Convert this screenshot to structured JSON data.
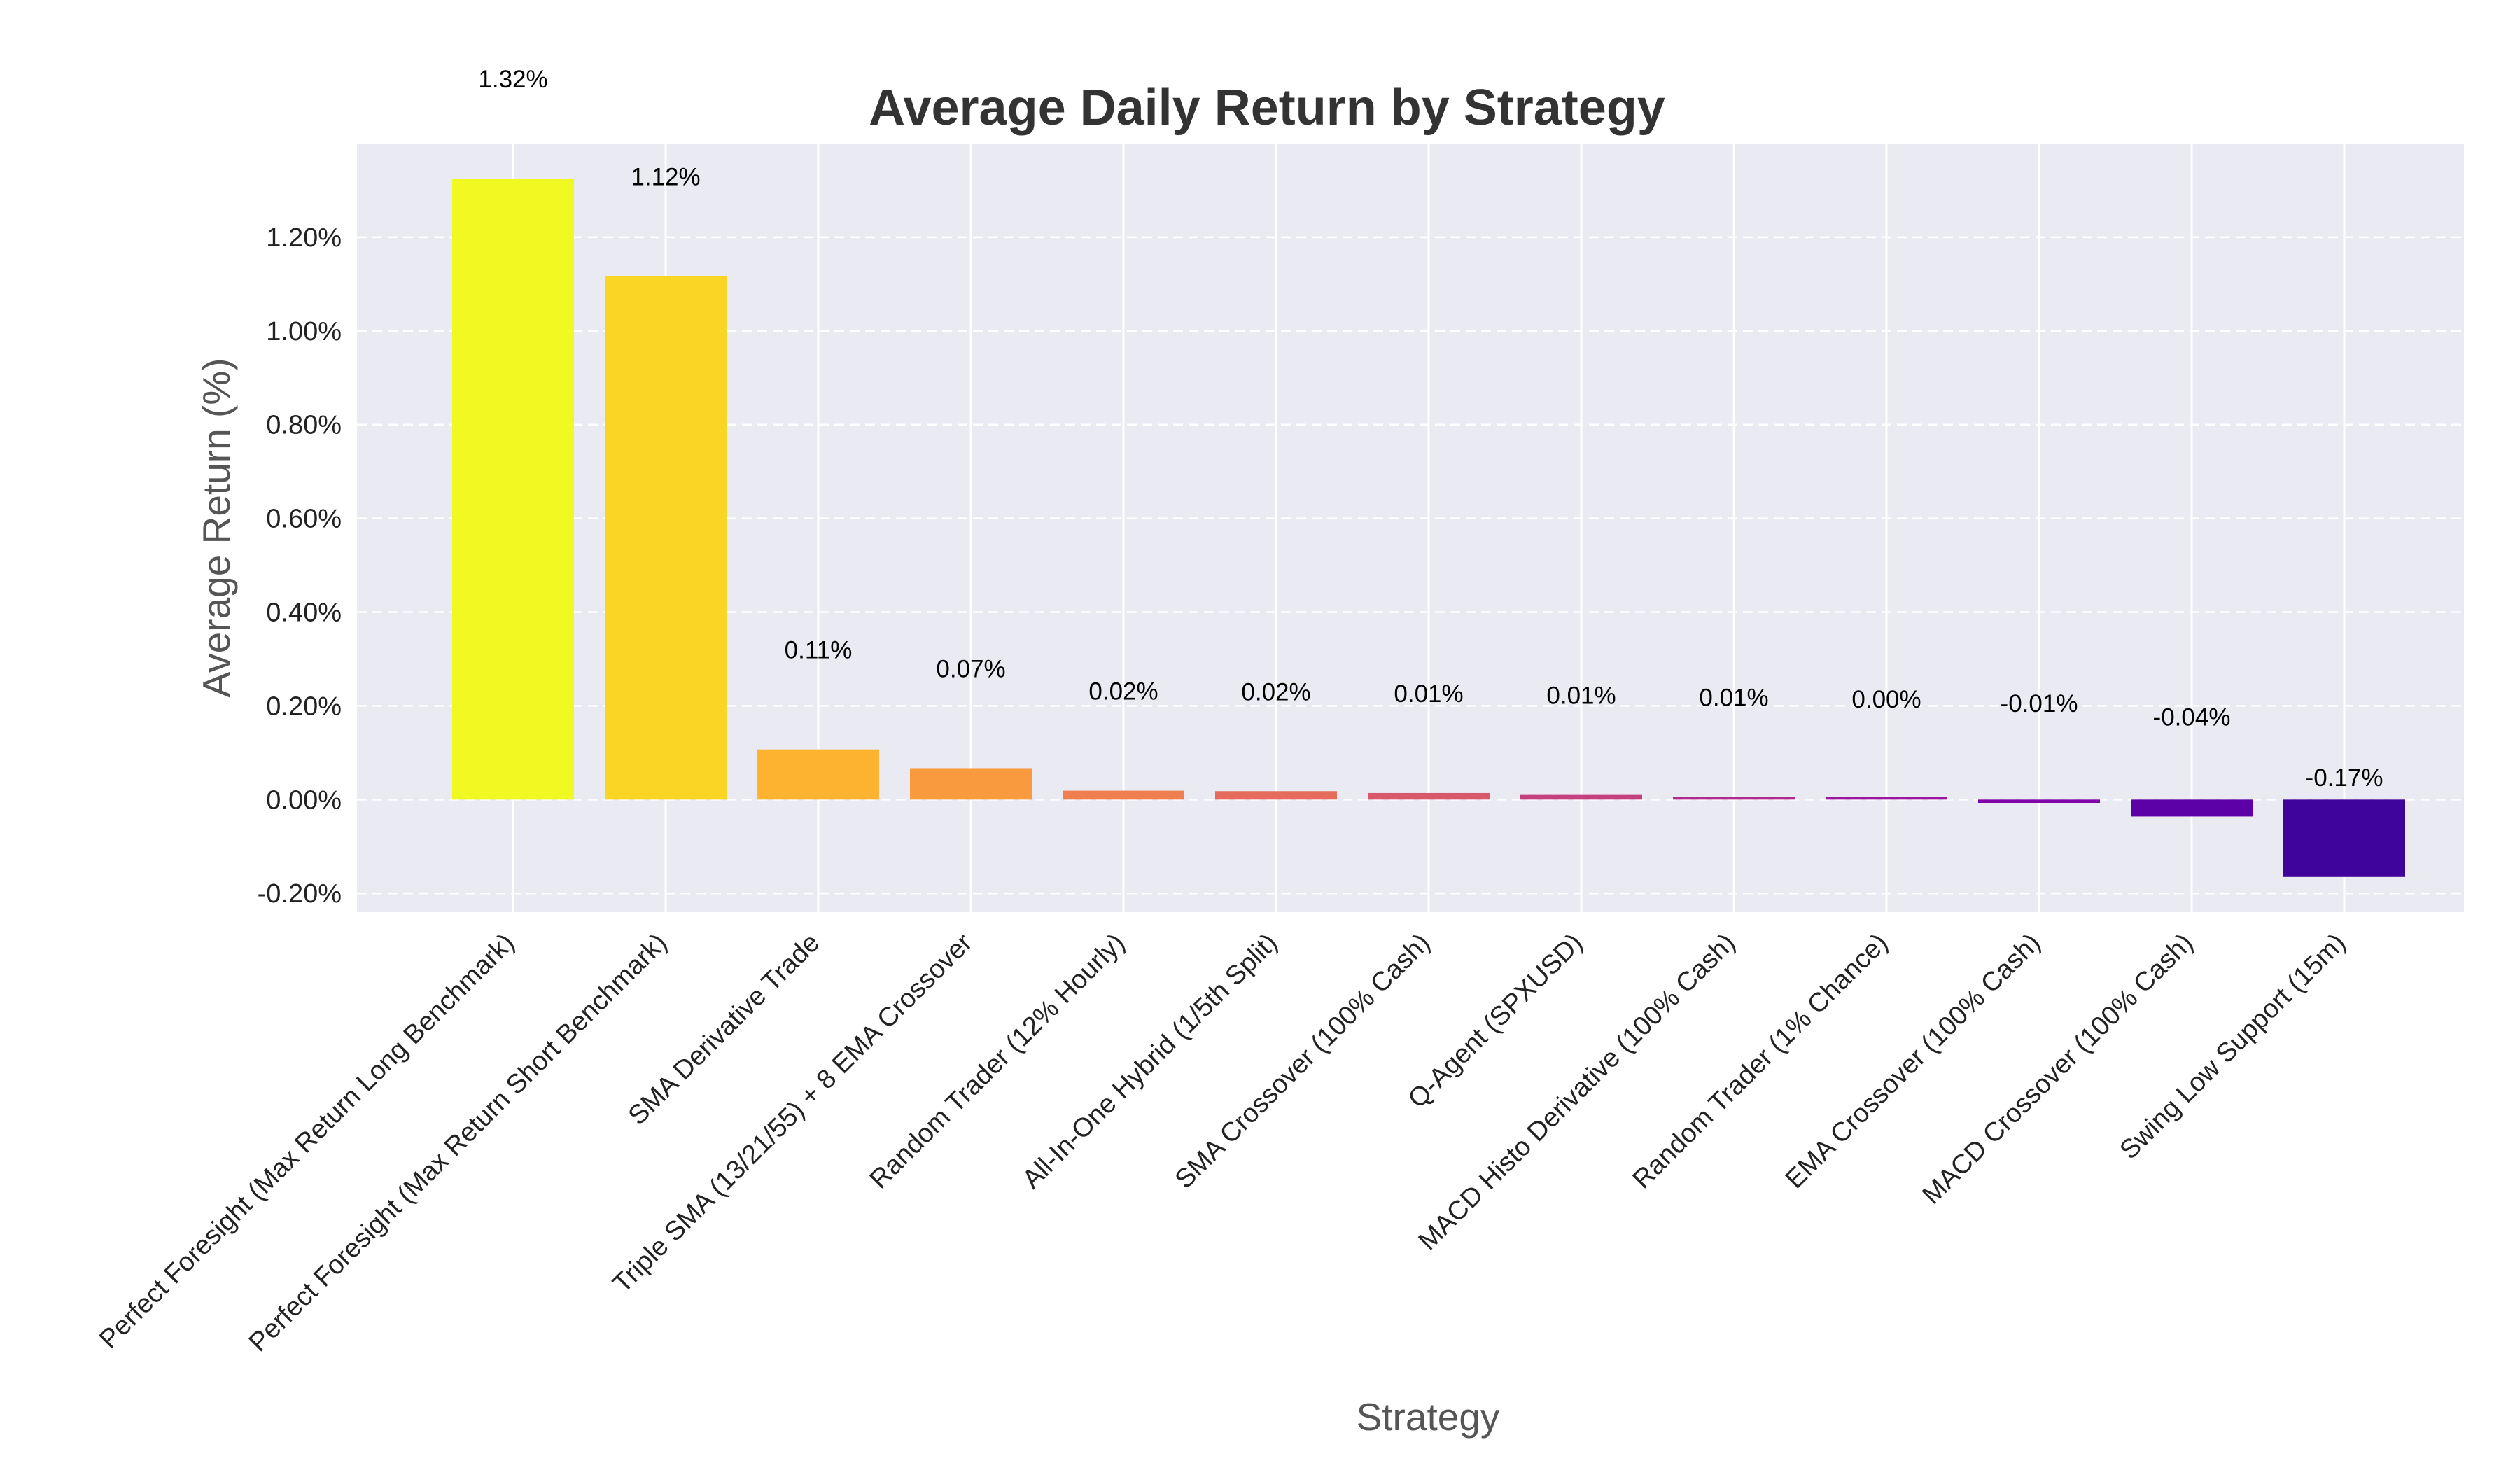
{
  "chart_data": {
    "type": "bar",
    "title": "Average Daily Return by Strategy",
    "xlabel": "Strategy",
    "ylabel": "Average Return (%)",
    "ylim": [
      -0.24,
      1.4
    ],
    "yticks": [
      -0.2,
      0.0,
      0.2,
      0.4,
      0.6,
      0.8,
      1.0,
      1.2
    ],
    "ytick_labels": [
      "-0.20%",
      "0.00%",
      "0.20%",
      "0.40%",
      "0.60%",
      "0.80%",
      "1.00%",
      "1.20%"
    ],
    "grid": true,
    "grid_style": "dashed",
    "colormap": "plasma",
    "categories": [
      "Perfect Foresight (Max Return Long Benchmark)",
      "Perfect Foresight (Max Return Short Benchmark)",
      "SMA Derivative Trade",
      "Triple SMA (13/21/55) + 8 EMA Crossover",
      "Random Trader (12% Hourly)",
      "All-In-One Hybrid (1/5th Split)",
      "SMA Crossover (100% Cash)",
      "Q-Agent (SPXUSD)",
      "MACD Histo Derivative (100% Cash)",
      "Random Trader (1% Chance)",
      "EMA Crossover (100% Cash)",
      "MACD Crossover (100% Cash)",
      "Swing Low Support (15m)"
    ],
    "values": [
      1.325,
      1.117,
      0.107,
      0.067,
      0.019,
      0.018,
      0.014,
      0.01,
      0.006,
      0.002,
      -0.007,
      -0.036,
      -0.165
    ],
    "data_labels": [
      "1.32%",
      "1.12%",
      "0.11%",
      "0.07%",
      "0.02%",
      "0.02%",
      "0.01%",
      "0.01%",
      "0.01%",
      "0.00%",
      "-0.01%",
      "-0.04%",
      "-0.17%"
    ],
    "colors": [
      "#f0f921",
      "#fbd524",
      "#fdb32f",
      "#f99a3e",
      "#f07f4f",
      "#e56b5d",
      "#d8576b",
      "#c5407e",
      "#b12a90",
      "#9c179e",
      "#7e03a8",
      "#5c01a6",
      "#3e049c"
    ]
  },
  "colors": {
    "plot_background": "#eaeaf2",
    "grid": "#ffffff"
  }
}
